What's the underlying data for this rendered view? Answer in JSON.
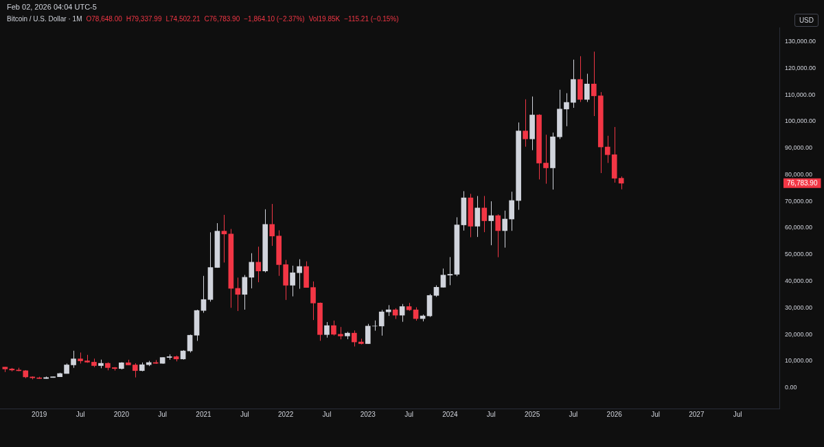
{
  "chart_data": {
    "type": "candlestick",
    "annotations": [
      "Feb 02, 2026 04:04 UTC-5",
      "Bitcoin / U.S. Dollar · 1M",
      "O78,648.00",
      "H79,337.99",
      "L74,502.21",
      "C76,783.90",
      "−1,864.10 (−2.37%)",
      "Vol19.85K",
      "−115.21 (−0.15%)",
      "USD",
      "76,783.90"
    ],
    "x": [
      "2018-08",
      "2018-09",
      "2018-10",
      "2018-11",
      "2018-12",
      "2019-01",
      "2019-02",
      "2019-03",
      "2019-04",
      "2019-05",
      "2019-06",
      "2019-07",
      "2019-08",
      "2019-09",
      "2019-10",
      "2019-11",
      "2019-12",
      "2020-01",
      "2020-02",
      "2020-03",
      "2020-04",
      "2020-05",
      "2020-06",
      "2020-07",
      "2020-08",
      "2020-09",
      "2020-10",
      "2020-11",
      "2020-12",
      "2021-01",
      "2021-02",
      "2021-03",
      "2021-04",
      "2021-05",
      "2021-06",
      "2021-07",
      "2021-08",
      "2021-09",
      "2021-10",
      "2021-11",
      "2021-12",
      "2022-01",
      "2022-02",
      "2022-03",
      "2022-04",
      "2022-05",
      "2022-06",
      "2022-07",
      "2022-08",
      "2022-09",
      "2022-10",
      "2022-11",
      "2022-12",
      "2023-01",
      "2023-02",
      "2023-03",
      "2023-04",
      "2023-05",
      "2023-06",
      "2023-07",
      "2023-08",
      "2023-09",
      "2023-10",
      "2023-11",
      "2023-12",
      "2024-01",
      "2024-02",
      "2024-03",
      "2024-04",
      "2024-05",
      "2024-06",
      "2024-07",
      "2024-08",
      "2024-09",
      "2024-10",
      "2024-11",
      "2024-12",
      "2025-01",
      "2025-02",
      "2025-03",
      "2025-04",
      "2025-05",
      "2025-06",
      "2025-07",
      "2025-08",
      "2025-09",
      "2025-10",
      "2025-11",
      "2025-12",
      "2026-01",
      "2026-02"
    ],
    "ohlc": [
      [
        7730,
        7780,
        5880,
        7030
      ],
      [
        7030,
        7410,
        6120,
        6630
      ],
      [
        6630,
        7480,
        6210,
        6370
      ],
      [
        6370,
        6600,
        3550,
        4040
      ],
      [
        4040,
        4240,
        3120,
        3710
      ],
      [
        3710,
        4110,
        3350,
        3440
      ],
      [
        3440,
        4200,
        3370,
        3820
      ],
      [
        3820,
        4130,
        3730,
        4100
      ],
      [
        4100,
        5620,
        4080,
        5320
      ],
      [
        5320,
        9080,
        5300,
        8550
      ],
      [
        8550,
        13880,
        7450,
        10820
      ],
      [
        10820,
        13200,
        9070,
        10080
      ],
      [
        10080,
        12330,
        9350,
        9590
      ],
      [
        9590,
        10920,
        7720,
        8290
      ],
      [
        8290,
        10540,
        7300,
        9150
      ],
      [
        9150,
        9510,
        6520,
        7540
      ],
      [
        7540,
        7750,
        6430,
        7190
      ],
      [
        7190,
        9580,
        6850,
        9350
      ],
      [
        9350,
        10500,
        8450,
        8540
      ],
      [
        8540,
        9190,
        3860,
        6410
      ],
      [
        6410,
        9470,
        6150,
        8630
      ],
      [
        8630,
        10080,
        8100,
        9450
      ],
      [
        9450,
        10380,
        8920,
        9140
      ],
      [
        9140,
        11440,
        8980,
        11340
      ],
      [
        11340,
        12490,
        10520,
        11650
      ],
      [
        11650,
        12080,
        9880,
        10780
      ],
      [
        10780,
        14100,
        10550,
        13800
      ],
      [
        13800,
        19950,
        13200,
        19700
      ],
      [
        19700,
        29300,
        17570,
        28990
      ],
      [
        28990,
        41990,
        28130,
        33110
      ],
      [
        33110,
        58350,
        32300,
        45140
      ],
      [
        45140,
        61790,
        45000,
        58790
      ],
      [
        58790,
        64900,
        47000,
        57720
      ],
      [
        57720,
        59600,
        30000,
        37300
      ],
      [
        37300,
        41330,
        28800,
        35040
      ],
      [
        35040,
        42320,
        29300,
        41460
      ],
      [
        41460,
        50500,
        37300,
        47130
      ],
      [
        47130,
        52950,
        39600,
        43820
      ],
      [
        43820,
        67000,
        43280,
        61320
      ],
      [
        61320,
        69000,
        53250,
        56950
      ],
      [
        56950,
        59100,
        42000,
        46210
      ],
      [
        46210,
        47990,
        32950,
        38470
      ],
      [
        38470,
        45820,
        34300,
        43160
      ],
      [
        43160,
        48240,
        37150,
        45510
      ],
      [
        45510,
        47450,
        37550,
        37640
      ],
      [
        37640,
        39900,
        25400,
        31790
      ],
      [
        31790,
        31990,
        17600,
        19940
      ],
      [
        19940,
        24660,
        18800,
        23310
      ],
      [
        23310,
        25200,
        19600,
        20050
      ],
      [
        20050,
        22800,
        18150,
        19420
      ],
      [
        19420,
        20990,
        18200,
        20490
      ],
      [
        20490,
        21480,
        15480,
        17170
      ],
      [
        17170,
        18400,
        16260,
        16540
      ],
      [
        16540,
        23960,
        16500,
        23130
      ],
      [
        23130,
        25250,
        21400,
        23150
      ],
      [
        23150,
        29190,
        19550,
        28470
      ],
      [
        28470,
        31000,
        26940,
        29250
      ],
      [
        29250,
        29840,
        25810,
        27220
      ],
      [
        27220,
        31430,
        24750,
        30470
      ],
      [
        30470,
        31830,
        28860,
        29230
      ],
      [
        29230,
        30200,
        25160,
        25940
      ],
      [
        25940,
        27480,
        24900,
        26960
      ],
      [
        26960,
        35200,
        26550,
        34640
      ],
      [
        34640,
        38440,
        34100,
        37720
      ],
      [
        37720,
        44740,
        37650,
        42280
      ],
      [
        42280,
        49050,
        38500,
        42580
      ],
      [
        42580,
        64000,
        41880,
        61130
      ],
      [
        61130,
        73800,
        59000,
        71290
      ],
      [
        71290,
        72800,
        56500,
        60640
      ],
      [
        60640,
        71980,
        56600,
        67490
      ],
      [
        67490,
        72000,
        58400,
        62680
      ],
      [
        62680,
        70000,
        53500,
        64620
      ],
      [
        64620,
        65100,
        49000,
        58970
      ],
      [
        58970,
        66500,
        52600,
        63330
      ],
      [
        63330,
        73600,
        58900,
        70290
      ],
      [
        70290,
        99600,
        66800,
        96410
      ],
      [
        96410,
        108300,
        90500,
        93430
      ],
      [
        93430,
        109350,
        89200,
        102410
      ],
      [
        102410,
        102700,
        78200,
        84350
      ],
      [
        84350,
        95000,
        76600,
        82550
      ],
      [
        82550,
        95800,
        74400,
        94210
      ],
      [
        94210,
        111900,
        93400,
        104640
      ],
      [
        104640,
        110600,
        98200,
        107140
      ],
      [
        107140,
        123200,
        105100,
        115760
      ],
      [
        115760,
        124500,
        107300,
        108250
      ],
      [
        108250,
        117900,
        107300,
        114050
      ],
      [
        114050,
        126200,
        102000,
        109600
      ],
      [
        109600,
        111000,
        80600,
        90400
      ],
      [
        90400,
        94600,
        84400,
        87500
      ],
      [
        87500,
        97900,
        77000,
        78650
      ],
      [
        78648,
        79337.99,
        74502.21,
        76783.9
      ]
    ],
    "colors": [
      "#f23645",
      "#f23645",
      "#f23645",
      "#f23645",
      "#f23645",
      "#f23645",
      "#d1d4dc",
      "#d1d4dc",
      "#d1d4dc",
      "#d1d4dc",
      "#d1d4dc",
      "#f23645",
      "#f23645",
      "#f23645",
      "#d1d4dc",
      "#f23645",
      "#f23645",
      "#d1d4dc",
      "#f23645",
      "#f23645",
      "#d1d4dc",
      "#d1d4dc",
      "#f23645",
      "#d1d4dc",
      "#d1d4dc",
      "#f23645",
      "#d1d4dc",
      "#d1d4dc",
      "#d1d4dc",
      "#d1d4dc",
      "#d1d4dc",
      "#d1d4dc",
      "#f23645",
      "#f23645",
      "#f23645",
      "#d1d4dc",
      "#d1d4dc",
      "#f23645",
      "#d1d4dc",
      "#f23645",
      "#f23645",
      "#f23645",
      "#d1d4dc",
      "#d1d4dc",
      "#f23645",
      "#f23645",
      "#f23645",
      "#d1d4dc",
      "#f23645",
      "#f23645",
      "#d1d4dc",
      "#f23645",
      "#f23645",
      "#d1d4dc",
      "#d1d4dc",
      "#d1d4dc",
      "#d1d4dc",
      "#f23645",
      "#d1d4dc",
      "#f23645",
      "#f23645",
      "#d1d4dc",
      "#d1d4dc",
      "#d1d4dc",
      "#d1d4dc",
      "#d1d4dc",
      "#d1d4dc",
      "#d1d4dc",
      "#f23645",
      "#d1d4dc",
      "#f23645",
      "#d1d4dc",
      "#f23645",
      "#d1d4dc",
      "#d1d4dc",
      "#d1d4dc",
      "#f23645",
      "#d1d4dc",
      "#f23645",
      "#f23645",
      "#d1d4dc",
      "#d1d4dc",
      "#d1d4dc",
      "#d1d4dc",
      "#f23645",
      "#d1d4dc",
      "#f23645",
      "#f23645",
      "#f23645",
      "#f23645",
      "#f23645"
    ],
    "xlim": [
      "2018-07-09",
      "2028-01-04"
    ],
    "xticks": [
      {
        "value": "2019-01",
        "label": "2019"
      },
      {
        "value": "2019-07",
        "label": "Jul"
      },
      {
        "value": "2020-01",
        "label": "2020"
      },
      {
        "value": "2020-07",
        "label": "Jul"
      },
      {
        "value": "2021-01",
        "label": "2021"
      },
      {
        "value": "2021-07",
        "label": "Jul"
      },
      {
        "value": "2022-01",
        "label": "2022"
      },
      {
        "value": "2022-07",
        "label": "Jul"
      },
      {
        "value": "2023-01",
        "label": "2023"
      },
      {
        "value": "2023-07",
        "label": "Jul"
      },
      {
        "value": "2024-01",
        "label": "2024"
      },
      {
        "value": "2024-07",
        "label": "Jul"
      },
      {
        "value": "2025-01",
        "label": "2025"
      },
      {
        "value": "2025-07",
        "label": "Jul"
      },
      {
        "value": "2026-01",
        "label": "2026"
      },
      {
        "value": "2026-07",
        "label": "Jul"
      },
      {
        "value": "2027-01",
        "label": "2027"
      },
      {
        "value": "2027-07",
        "label": "Jul"
      }
    ],
    "ylim": [
      -7835,
      135280
    ],
    "yticks": [
      {
        "value": 0,
        "label": "0.00"
      },
      {
        "value": 10000,
        "label": "10,000.00"
      },
      {
        "value": 20000,
        "label": "20,000.00"
      },
      {
        "value": 30000,
        "label": "30,000.00"
      },
      {
        "value": 40000,
        "label": "40,000.00"
      },
      {
        "value": 50000,
        "label": "50,000.00"
      },
      {
        "value": 60000,
        "label": "60,000.00"
      },
      {
        "value": 70000,
        "label": "70,000.00"
      },
      {
        "value": 80000,
        "label": "80,000.00"
      },
      {
        "value": 90000,
        "label": "90,000.00"
      },
      {
        "value": 100000,
        "label": "100,000.00"
      },
      {
        "value": 110000,
        "label": "110,000.00"
      },
      {
        "value": 120000,
        "label": "120,000.00"
      },
      {
        "value": 130000,
        "label": "130,000.00"
      }
    ],
    "grid": false,
    "legend": false
  }
}
